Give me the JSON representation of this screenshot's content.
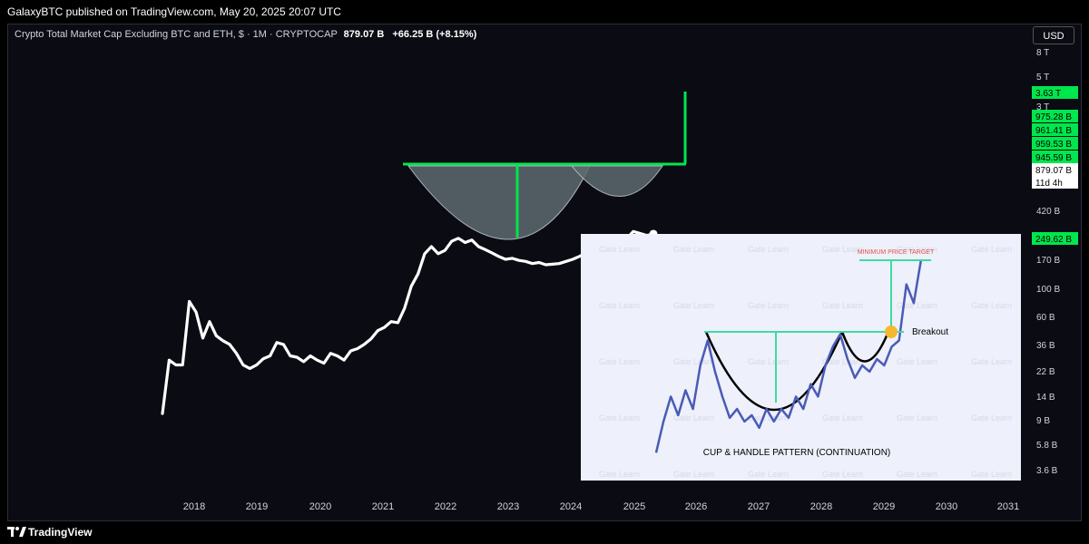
{
  "header": {
    "attribution": "GalaxyBTC published on TradingView.com, May 20, 2025 20:07 UTC"
  },
  "legend": {
    "symbol": "Crypto Total Market Cap Excluding BTC and ETH, $ · 1M · CRYPTOCAP",
    "value": "879.07 B",
    "change": "+66.25 B (+8.15%)"
  },
  "currency_button": "USD",
  "footer": {
    "brand": "TradingView"
  },
  "colors": {
    "line": "#ffffff",
    "pattern": "#00e64d",
    "cup_fill": "#5d6b70",
    "price_tag": "#00e64d",
    "background": "#0b0b14"
  },
  "chart_data": [
    {
      "type": "line",
      "title": "",
      "y_scale": "log",
      "x_ticks": [
        "2018",
        "2019",
        "2020",
        "2021",
        "2022",
        "2023",
        "2024",
        "2025",
        "2026",
        "2027",
        "2028",
        "2029",
        "2030",
        "2031"
      ],
      "y_ticks": [
        "8 T",
        "5 T",
        "3 T",
        "420 B",
        "170 B",
        "100 B",
        "60 B",
        "36 B",
        "22 B",
        "14 B",
        "9 B",
        "5.8 B",
        "3.6 B"
      ],
      "price_tags": [
        {
          "label": "3.63 T",
          "style": "green"
        },
        {
          "label": "975.28 B",
          "style": "green"
        },
        {
          "label": "961.41 B",
          "style": "green"
        },
        {
          "label": "959.53 B",
          "style": "green"
        },
        {
          "label": "945.59 B",
          "style": "green"
        },
        {
          "label": "879.07 B",
          "style": "white"
        },
        {
          "label": "11d 4h",
          "style": "white"
        },
        {
          "label": "249.62 B",
          "style": "green"
        }
      ],
      "series": [
        {
          "values": [
            6,
            25,
            22,
            22,
            120,
            90,
            45,
            70,
            48,
            42,
            38,
            30,
            22,
            20,
            22,
            26,
            28,
            40,
            38,
            28,
            27,
            24,
            28,
            25,
            23,
            30,
            28,
            25,
            32,
            34,
            38,
            44,
            55,
            60,
            70,
            68,
            100,
            180,
            250,
            430,
            520,
            430,
            470,
            600,
            650,
            580,
            620,
            520,
            480,
            440,
            400,
            370,
            380,
            360,
            350,
            330,
            340,
            320,
            325,
            330,
            350,
            370,
            400,
            440,
            520,
            480,
            460,
            490,
            530,
            640,
            780,
            740,
            700,
            730
          ],
          "annotation": "cup & handle with breakout projection"
        }
      ]
    },
    {
      "type": "line",
      "title": "CUP & HANDLE PATTERN (CONTINUATION)",
      "annotations": [
        "MINIMUM PRICE TARGET",
        "Breakout"
      ],
      "watermark": "Gate Learn",
      "series": [
        {
          "values": [
            1,
            3.5,
            5.5,
            4,
            6,
            4.5,
            8,
            10,
            7.5,
            5.5,
            3.8,
            4.5,
            3.5,
            4,
            3,
            4.5,
            3.5,
            4.5,
            3.8,
            5.5,
            4.5,
            6.5,
            5.5,
            8,
            9.5,
            10.5,
            8.5,
            7,
            8,
            7.5,
            8.5,
            8,
            9.5,
            10,
            14.5,
            13,
            16.5
          ]
        }
      ]
    }
  ]
}
